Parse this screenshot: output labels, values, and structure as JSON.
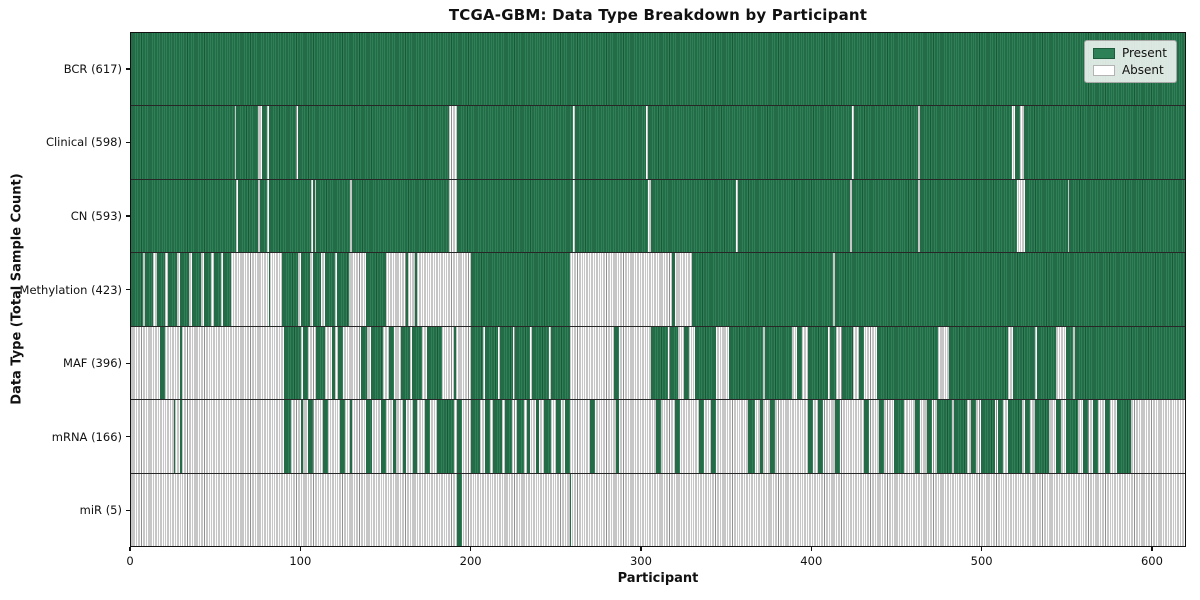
{
  "chart_data": {
    "type": "heatmap",
    "title": "TCGA-GBM: Data Type Breakdown by Participant",
    "xlabel": "Participant",
    "ylabel": "Data Type (Total Sample Count)",
    "xlim": [
      0,
      620
    ],
    "x_ticks": [
      0,
      100,
      200,
      300,
      400,
      500,
      600
    ],
    "grid": false,
    "legend_position": "upper right",
    "legend": [
      {
        "label": "Present",
        "fill": "#2e8156",
        "edge": "#1d5c3a"
      },
      {
        "label": "Absent",
        "fill": "#ffffff",
        "edge": "#b4b4b4"
      }
    ],
    "colors": {
      "present_fill": "#2e8156",
      "present_edge": "#1b5838",
      "absent_fill": "#fdfdfd",
      "absent_edge": "#8f8f8f",
      "row_divider": "#272727",
      "axis": "#111111"
    },
    "rows": [
      {
        "data_type": "BCR",
        "count": 617,
        "label": "BCR (617)",
        "present_segments": [
          [
            0,
            620
          ]
        ]
      },
      {
        "data_type": "Clinical",
        "count": 598,
        "label": "Clinical (598)",
        "present_segments": [
          [
            0,
            61
          ],
          [
            62,
            75
          ],
          [
            77,
            80
          ],
          [
            81,
            97
          ],
          [
            98,
            187
          ],
          [
            192,
            260
          ],
          [
            261,
            303
          ],
          [
            304,
            424
          ],
          [
            425,
            463
          ],
          [
            464,
            518
          ],
          [
            520,
            523
          ],
          [
            525,
            620
          ]
        ]
      },
      {
        "data_type": "CN",
        "count": 593,
        "label": "CN (593)",
        "present_segments": [
          [
            0,
            62
          ],
          [
            63,
            75
          ],
          [
            76,
            80
          ],
          [
            81,
            106
          ],
          [
            107,
            108
          ],
          [
            109,
            129
          ],
          [
            130,
            187
          ],
          [
            192,
            260
          ],
          [
            261,
            304
          ],
          [
            306,
            356
          ],
          [
            357,
            423
          ],
          [
            424,
            463
          ],
          [
            464,
            521
          ],
          [
            526,
            551
          ],
          [
            552,
            620
          ]
        ]
      },
      {
        "data_type": "Methylation",
        "count": 423,
        "label": "Methylation (423)",
        "present_segments": [
          [
            0,
            7
          ],
          [
            8,
            13
          ],
          [
            15,
            20
          ],
          [
            22,
            27
          ],
          [
            29,
            34
          ],
          [
            36,
            41
          ],
          [
            43,
            47
          ],
          [
            49,
            53
          ],
          [
            54,
            59
          ],
          [
            81,
            82
          ],
          [
            89,
            98
          ],
          [
            100,
            105
          ],
          [
            107,
            112
          ],
          [
            114,
            120
          ],
          [
            121,
            128
          ],
          [
            138,
            150
          ],
          [
            162,
            163
          ],
          [
            167,
            168
          ],
          [
            200,
            258
          ],
          [
            318,
            320
          ],
          [
            330,
            413
          ],
          [
            414,
            620
          ]
        ]
      },
      {
        "data_type": "MAF",
        "count": 396,
        "label": "MAF (396)",
        "present_segments": [
          [
            17,
            20
          ],
          [
            29,
            30
          ],
          [
            90,
            100
          ],
          [
            101,
            104
          ],
          [
            109,
            114
          ],
          [
            118,
            120
          ],
          [
            122,
            125
          ],
          [
            135,
            139
          ],
          [
            141,
            148
          ],
          [
            152,
            155
          ],
          [
            159,
            164
          ],
          [
            165,
            171
          ],
          [
            174,
            183
          ],
          [
            190,
            191
          ],
          [
            200,
            207
          ],
          [
            208,
            216
          ],
          [
            217,
            225
          ],
          [
            226,
            235
          ],
          [
            236,
            246
          ],
          [
            247,
            258
          ],
          [
            284,
            287
          ],
          [
            306,
            316
          ],
          [
            317,
            322
          ],
          [
            325,
            328
          ],
          [
            332,
            344
          ],
          [
            352,
            372
          ],
          [
            373,
            389
          ],
          [
            392,
            395
          ],
          [
            398,
            410
          ],
          [
            411,
            415
          ],
          [
            418,
            425
          ],
          [
            428,
            431
          ],
          [
            439,
            475
          ],
          [
            481,
            516
          ],
          [
            519,
            532
          ],
          [
            533,
            544
          ],
          [
            550,
            554
          ],
          [
            555,
            620
          ]
        ]
      },
      {
        "data_type": "mRNA",
        "count": 166,
        "label": "mRNA (166)",
        "present_segments": [
          [
            25,
            26
          ],
          [
            29,
            30
          ],
          [
            90,
            94
          ],
          [
            100,
            101
          ],
          [
            104,
            107
          ],
          [
            113,
            116
          ],
          [
            123,
            126
          ],
          [
            129,
            130
          ],
          [
            138,
            142
          ],
          [
            147,
            150
          ],
          [
            154,
            156
          ],
          [
            160,
            162
          ],
          [
            166,
            168
          ],
          [
            173,
            176
          ],
          [
            180,
            190
          ],
          [
            192,
            195
          ],
          [
            200,
            205
          ],
          [
            208,
            211
          ],
          [
            213,
            218
          ],
          [
            220,
            224
          ],
          [
            227,
            231
          ],
          [
            233,
            235
          ],
          [
            238,
            240
          ],
          [
            243,
            247
          ],
          [
            250,
            253
          ],
          [
            255,
            258
          ],
          [
            270,
            273
          ],
          [
            285,
            287
          ],
          [
            309,
            312
          ],
          [
            320,
            323
          ],
          [
            334,
            337
          ],
          [
            341,
            344
          ],
          [
            363,
            367
          ],
          [
            370,
            372
          ],
          [
            376,
            379
          ],
          [
            398,
            401
          ],
          [
            404,
            407
          ],
          [
            414,
            417
          ],
          [
            431,
            434
          ],
          [
            440,
            443
          ],
          [
            449,
            455
          ],
          [
            461,
            464
          ],
          [
            468,
            471
          ],
          [
            474,
            483
          ],
          [
            484,
            492
          ],
          [
            494,
            497
          ],
          [
            500,
            508
          ],
          [
            510,
            513
          ],
          [
            516,
            524
          ],
          [
            526,
            529
          ],
          [
            532,
            540
          ],
          [
            544,
            547
          ],
          [
            550,
            557
          ],
          [
            560,
            563
          ],
          [
            566,
            569
          ],
          [
            573,
            576
          ],
          [
            580,
            588
          ]
        ]
      },
      {
        "data_type": "miR",
        "count": 5,
        "label": "miR (5)",
        "present_segments": [
          [
            192,
            195
          ],
          [
            258,
            259
          ]
        ]
      }
    ]
  }
}
